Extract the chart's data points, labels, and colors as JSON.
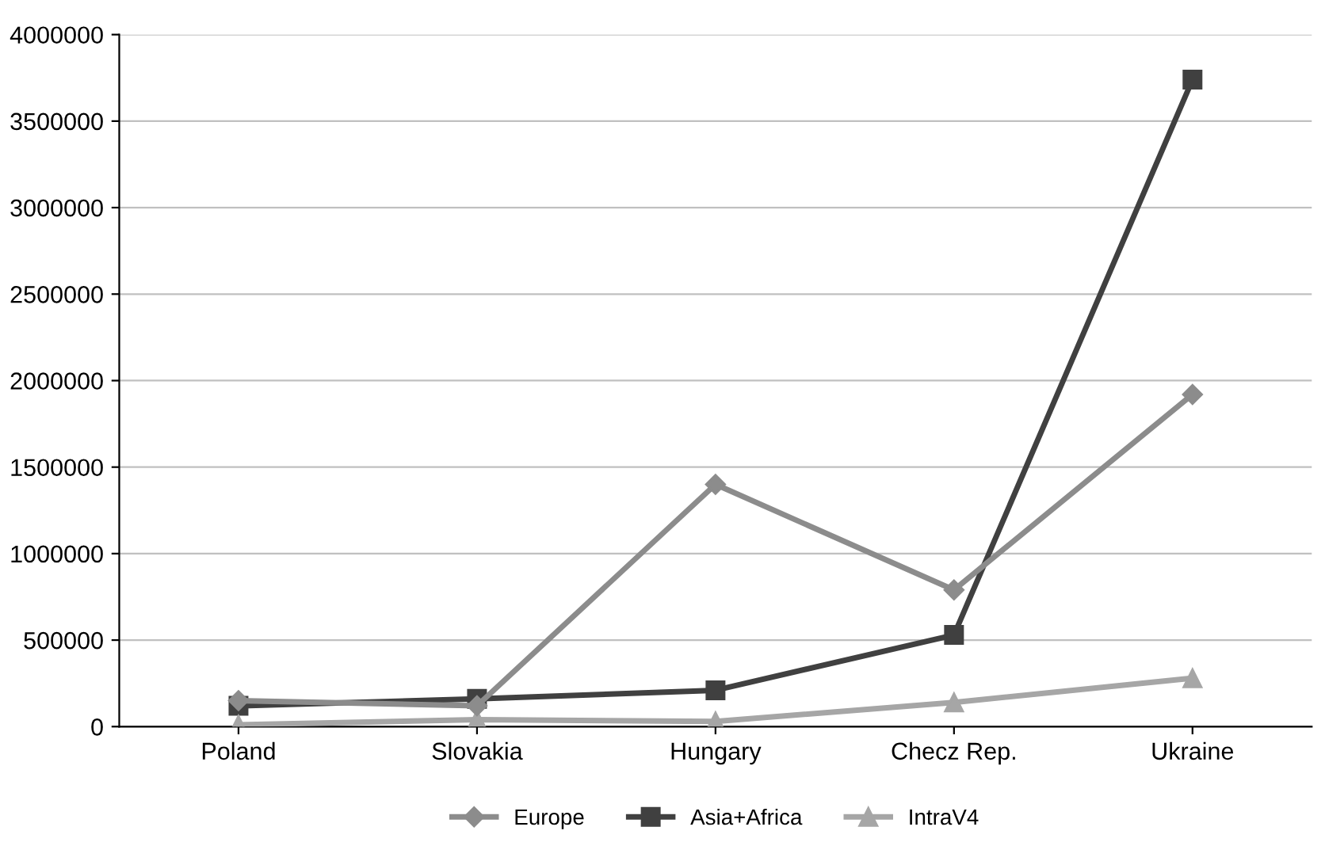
{
  "chart_data": {
    "type": "line",
    "categories": [
      "Poland",
      "Slovakia",
      "Hungary",
      "Checz Rep.",
      "Ukraine"
    ],
    "series": [
      {
        "name": "Europe",
        "color": "#8c8c8c",
        "marker": "diamond",
        "values": [
          150000,
          120000,
          1400000,
          790000,
          1920000
        ]
      },
      {
        "name": "Asia+Africa",
        "color": "#404040",
        "marker": "square",
        "values": [
          120000,
          160000,
          210000,
          530000,
          3740000
        ]
      },
      {
        "name": "IntraV4",
        "color": "#a6a6a6",
        "marker": "triangle",
        "values": [
          10000,
          40000,
          30000,
          140000,
          280000
        ]
      }
    ],
    "ylim": [
      0,
      4000000
    ],
    "yticks": [
      0,
      500000,
      1000000,
      1500000,
      2000000,
      2500000,
      3000000,
      3500000,
      4000000
    ],
    "grid": "y",
    "legend": "bottom",
    "line_style": "solid"
  }
}
